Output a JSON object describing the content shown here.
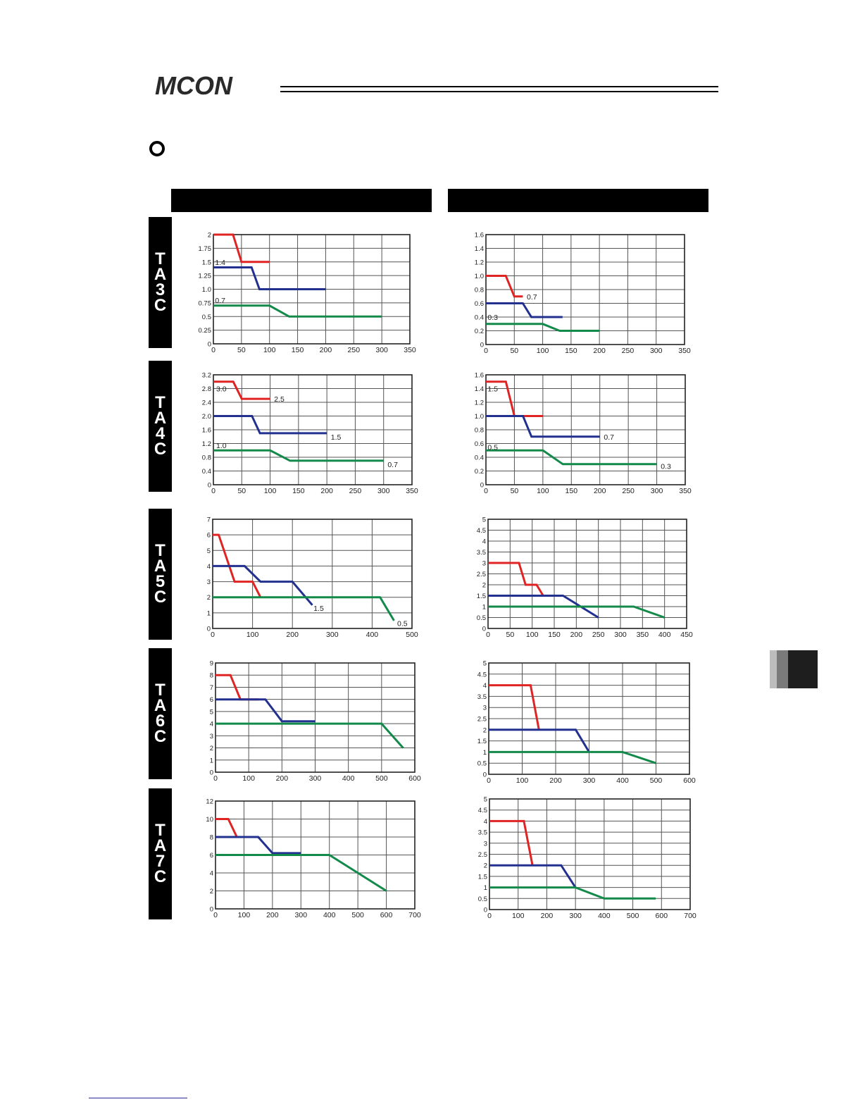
{
  "header": {
    "logo_text": "MCON",
    "section_icon": "open-circle-bullet-icon"
  },
  "columns": [
    {
      "label": ""
    },
    {
      "label": ""
    }
  ],
  "rows": [
    {
      "label": "TA3C"
    },
    {
      "label": "TA4C"
    },
    {
      "label": "TA5C"
    },
    {
      "label": "TA6C"
    },
    {
      "label": "TA7C"
    }
  ],
  "colors": {
    "red": "#e02424",
    "blue": "#22308f",
    "green": "#138a4a",
    "grid": "#555555"
  },
  "chart_data": [
    {
      "id": "TA3C-left",
      "type": "line",
      "xlim": [
        0,
        350
      ],
      "xticks": [
        "0",
        "50",
        "100",
        "150",
        "200",
        "250",
        "300",
        "350"
      ],
      "ylim": [
        0,
        2
      ],
      "yticks": [
        "0",
        "0.25",
        "0.5",
        "0.75",
        "1.0",
        "1.25",
        "1.5",
        "1.75",
        "2"
      ],
      "series": [
        {
          "color": "red",
          "x": [
            0,
            35,
            50,
            100
          ],
          "y": [
            2,
            2,
            1.5,
            1.5
          ]
        },
        {
          "color": "blue",
          "x": [
            0,
            68,
            82,
            200
          ],
          "y": [
            1.4,
            1.4,
            1.0,
            1.0
          ]
        },
        {
          "color": "green",
          "x": [
            0,
            100,
            135,
            300
          ],
          "y": [
            0.7,
            0.7,
            0.5,
            0.5
          ]
        }
      ],
      "annotations": [
        {
          "text": "1.4",
          "x": 3,
          "y": 1.5
        },
        {
          "text": "0.7",
          "x": 3,
          "y": 0.8
        }
      ]
    },
    {
      "id": "TA3C-right",
      "type": "line",
      "xlim": [
        0,
        350
      ],
      "xticks": [
        "0",
        "50",
        "100",
        "150",
        "200",
        "250",
        "300",
        "350"
      ],
      "ylim": [
        0,
        1.6
      ],
      "yticks": [
        "0",
        "0.2",
        "0.4",
        "0.6",
        "0.8",
        "1.0",
        "1.2",
        "1.4",
        "1.6"
      ],
      "series": [
        {
          "color": "red",
          "x": [
            0,
            35,
            50,
            65
          ],
          "y": [
            1.0,
            1.0,
            0.7,
            0.7
          ]
        },
        {
          "color": "blue",
          "x": [
            0,
            65,
            80,
            135
          ],
          "y": [
            0.6,
            0.6,
            0.4,
            0.4
          ]
        },
        {
          "color": "green",
          "x": [
            0,
            100,
            130,
            200
          ],
          "y": [
            0.3,
            0.3,
            0.2,
            0.2
          ]
        }
      ],
      "annotations": [
        {
          "text": "0.7",
          "x": 72,
          "y": 0.7
        },
        {
          "text": "0.3",
          "x": 3,
          "y": 0.4
        }
      ]
    },
    {
      "id": "TA4C-left",
      "type": "line",
      "xlim": [
        0,
        350
      ],
      "xticks": [
        "0",
        "50",
        "100",
        "150",
        "200",
        "250",
        "300",
        "350"
      ],
      "ylim": [
        0,
        3.2
      ],
      "yticks": [
        "0",
        "0.4",
        "0.8",
        "1.2",
        "1.6",
        "2.0",
        "2.4",
        "2.8",
        "3.2"
      ],
      "series": [
        {
          "color": "red",
          "x": [
            0,
            35,
            50,
            100
          ],
          "y": [
            3.0,
            3.0,
            2.5,
            2.5
          ]
        },
        {
          "color": "blue",
          "x": [
            0,
            68,
            82,
            200
          ],
          "y": [
            2.0,
            2.0,
            1.5,
            1.5
          ]
        },
        {
          "color": "green",
          "x": [
            0,
            100,
            135,
            300
          ],
          "y": [
            1.0,
            1.0,
            0.7,
            0.7
          ]
        }
      ],
      "annotations": [
        {
          "text": "3.0",
          "x": 5,
          "y": 2.8
        },
        {
          "text": "2.5",
          "x": 107,
          "y": 2.5
        },
        {
          "text": "1.5",
          "x": 207,
          "y": 1.4
        },
        {
          "text": "1.0",
          "x": 5,
          "y": 1.15
        },
        {
          "text": "0.7",
          "x": 307,
          "y": 0.6
        }
      ]
    },
    {
      "id": "TA4C-right",
      "type": "line",
      "xlim": [
        0,
        350
      ],
      "xticks": [
        "0",
        "50",
        "100",
        "150",
        "200",
        "250",
        "300",
        "350"
      ],
      "ylim": [
        0,
        1.6
      ],
      "yticks": [
        "0",
        "0.2",
        "0.4",
        "0.6",
        "0.8",
        "1.0",
        "1.2",
        "1.4",
        "1.6"
      ],
      "series": [
        {
          "color": "red",
          "x": [
            0,
            35,
            50,
            100
          ],
          "y": [
            1.5,
            1.5,
            1.0,
            1.0
          ]
        },
        {
          "color": "blue",
          "x": [
            0,
            65,
            80,
            200
          ],
          "y": [
            1.0,
            1.0,
            0.7,
            0.7
          ]
        },
        {
          "color": "green",
          "x": [
            0,
            100,
            135,
            300
          ],
          "y": [
            0.5,
            0.5,
            0.3,
            0.3
          ]
        }
      ],
      "annotations": [
        {
          "text": "1.5",
          "x": 3,
          "y": 1.4
        },
        {
          "text": "0.7",
          "x": 207,
          "y": 0.7
        },
        {
          "text": "0.5",
          "x": 3,
          "y": 0.55
        },
        {
          "text": "0.3",
          "x": 307,
          "y": 0.27
        }
      ]
    },
    {
      "id": "TA5C-left",
      "type": "line",
      "xlim": [
        0,
        500
      ],
      "xticks": [
        "0",
        "100",
        "200",
        "300",
        "400",
        "500"
      ],
      "ylim": [
        0,
        7
      ],
      "yticks": [
        "0",
        "1",
        "2",
        "3",
        "4",
        "5",
        "6",
        "7"
      ],
      "series": [
        {
          "color": "red",
          "x": [
            0,
            15,
            55,
            100,
            120
          ],
          "y": [
            6,
            6,
            3,
            3,
            2
          ]
        },
        {
          "color": "blue",
          "x": [
            0,
            80,
            120,
            200,
            250
          ],
          "y": [
            4,
            4,
            3,
            3,
            1.5
          ]
        },
        {
          "color": "green",
          "x": [
            0,
            420,
            455
          ],
          "y": [
            2,
            2,
            0.5
          ]
        }
      ],
      "annotations": [
        {
          "text": "1.5",
          "x": 253,
          "y": 1.3
        },
        {
          "text": "0.5",
          "x": 463,
          "y": 0.35
        }
      ]
    },
    {
      "id": "TA5C-right",
      "type": "line",
      "xlim": [
        0,
        450
      ],
      "xticks": [
        "0",
        "50",
        "100",
        "150",
        "200",
        "250",
        "300",
        "350",
        "400",
        "450"
      ],
      "ylim": [
        0,
        5
      ],
      "yticks": [
        "0",
        "0.5",
        "1",
        "1.5",
        "2",
        "2.5",
        "3",
        "3.5",
        "4",
        "4.5",
        "5"
      ],
      "series": [
        {
          "color": "red",
          "x": [
            0,
            70,
            85,
            110,
            125
          ],
          "y": [
            3,
            3,
            2,
            2,
            1.5
          ]
        },
        {
          "color": "blue",
          "x": [
            0,
            170,
            250
          ],
          "y": [
            1.5,
            1.5,
            0.5
          ]
        },
        {
          "color": "green",
          "x": [
            0,
            330,
            400
          ],
          "y": [
            1,
            1,
            0.5
          ]
        }
      ],
      "annotations": []
    },
    {
      "id": "TA6C-left",
      "type": "line",
      "xlim": [
        0,
        600
      ],
      "xticks": [
        "0",
        "100",
        "200",
        "300",
        "400",
        "500",
        "600"
      ],
      "ylim": [
        0,
        9
      ],
      "yticks": [
        "0",
        "1",
        "2",
        "3",
        "4",
        "5",
        "6",
        "7",
        "8",
        "9"
      ],
      "series": [
        {
          "color": "red",
          "x": [
            0,
            45,
            75,
            130
          ],
          "y": [
            8,
            8,
            6,
            6
          ]
        },
        {
          "color": "blue",
          "x": [
            0,
            150,
            200,
            300
          ],
          "y": [
            6,
            6,
            4.2,
            4.2
          ]
        },
        {
          "color": "green",
          "x": [
            0,
            500,
            565
          ],
          "y": [
            4,
            4,
            2
          ]
        }
      ],
      "annotations": []
    },
    {
      "id": "TA6C-right",
      "type": "line",
      "xlim": [
        0,
        600
      ],
      "xticks": [
        "0",
        "100",
        "200",
        "300",
        "400",
        "500",
        "600"
      ],
      "ylim": [
        0,
        5
      ],
      "yticks": [
        "0",
        "0.5",
        "1",
        "1.5",
        "2",
        "2.5",
        "3",
        "3.5",
        "4",
        "4.5",
        "5"
      ],
      "series": [
        {
          "color": "red",
          "x": [
            0,
            125,
            150
          ],
          "y": [
            4,
            4,
            2
          ]
        },
        {
          "color": "blue",
          "x": [
            0,
            260,
            300
          ],
          "y": [
            2,
            2,
            1
          ]
        },
        {
          "color": "green",
          "x": [
            0,
            400,
            500
          ],
          "y": [
            1,
            1,
            0.5
          ]
        }
      ],
      "annotations": []
    },
    {
      "id": "TA7C-left",
      "type": "line",
      "xlim": [
        0,
        700
      ],
      "xticks": [
        "0",
        "100",
        "200",
        "300",
        "400",
        "500",
        "600",
        "700"
      ],
      "ylim": [
        0,
        12
      ],
      "yticks": [
        "0",
        "2",
        "4",
        "6",
        "8",
        "10",
        "12"
      ],
      "series": [
        {
          "color": "red",
          "x": [
            0,
            45,
            75,
            150
          ],
          "y": [
            10,
            10,
            8,
            8
          ]
        },
        {
          "color": "blue",
          "x": [
            0,
            150,
            200,
            300
          ],
          "y": [
            8,
            8,
            6.2,
            6.2
          ]
        },
        {
          "color": "green",
          "x": [
            0,
            400,
            600
          ],
          "y": [
            6,
            6,
            2
          ]
        }
      ],
      "annotations": []
    },
    {
      "id": "TA7C-right",
      "type": "line",
      "xlim": [
        0,
        700
      ],
      "xticks": [
        "0",
        "100",
        "200",
        "300",
        "400",
        "500",
        "600",
        "700"
      ],
      "ylim": [
        0,
        5
      ],
      "yticks": [
        "0",
        "0.5",
        "1",
        "1.5",
        "2",
        "2.5",
        "3",
        "3.5",
        "4",
        "4.5",
        "5"
      ],
      "series": [
        {
          "color": "red",
          "x": [
            0,
            120,
            150
          ],
          "y": [
            4,
            4,
            2
          ]
        },
        {
          "color": "blue",
          "x": [
            0,
            250,
            300
          ],
          "y": [
            2,
            2,
            1
          ]
        },
        {
          "color": "green",
          "x": [
            0,
            300,
            400,
            580
          ],
          "y": [
            1,
            1,
            0.5,
            0.5
          ]
        }
      ],
      "annotations": []
    }
  ]
}
